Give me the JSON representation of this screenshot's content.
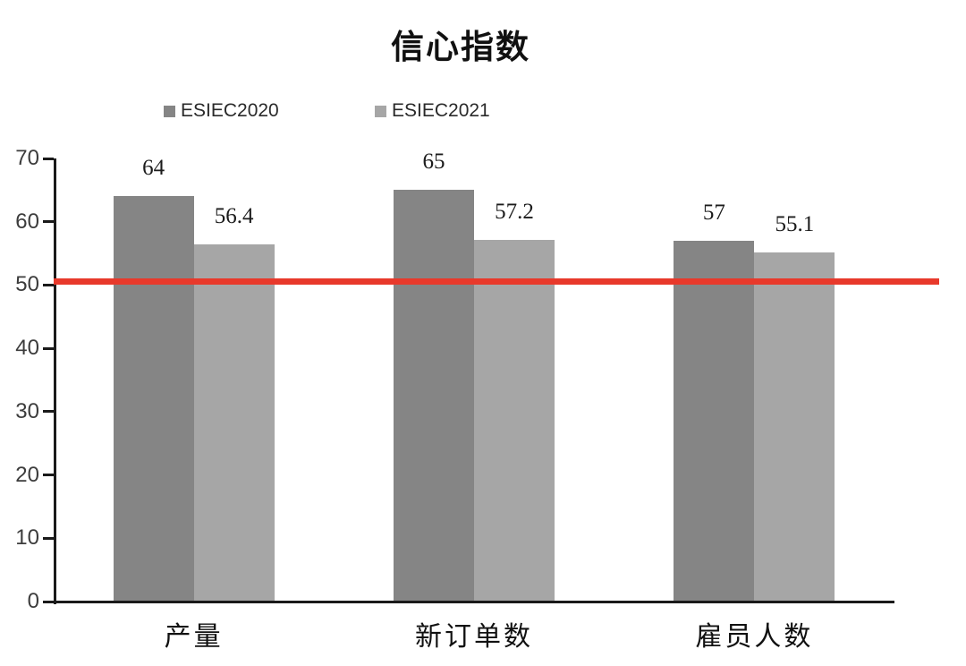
{
  "title": "信心指数",
  "legend": {
    "items": [
      {
        "label": "ESIEC2020",
        "color": "#858585"
      },
      {
        "label": "ESIEC2021",
        "color": "#a6a6a6"
      }
    ]
  },
  "chart_data": {
    "type": "bar",
    "title": "信心指数",
    "categories": [
      "产量",
      "新订单数",
      "雇员人数"
    ],
    "series": [
      {
        "name": "ESIEC2020",
        "color": "#858585",
        "values": [
          64,
          65,
          57
        ]
      },
      {
        "name": "ESIEC2021",
        "color": "#a6a6a6",
        "values": [
          56.4,
          57.2,
          55.1
        ]
      }
    ],
    "xlabel": "",
    "ylabel": "",
    "ylim": [
      0,
      70
    ],
    "yticks": [
      0,
      10,
      20,
      30,
      40,
      50,
      60,
      70
    ],
    "grid": false,
    "legend_position": "top",
    "reference_line": {
      "value": 50.5,
      "color": "#e8392b"
    }
  }
}
